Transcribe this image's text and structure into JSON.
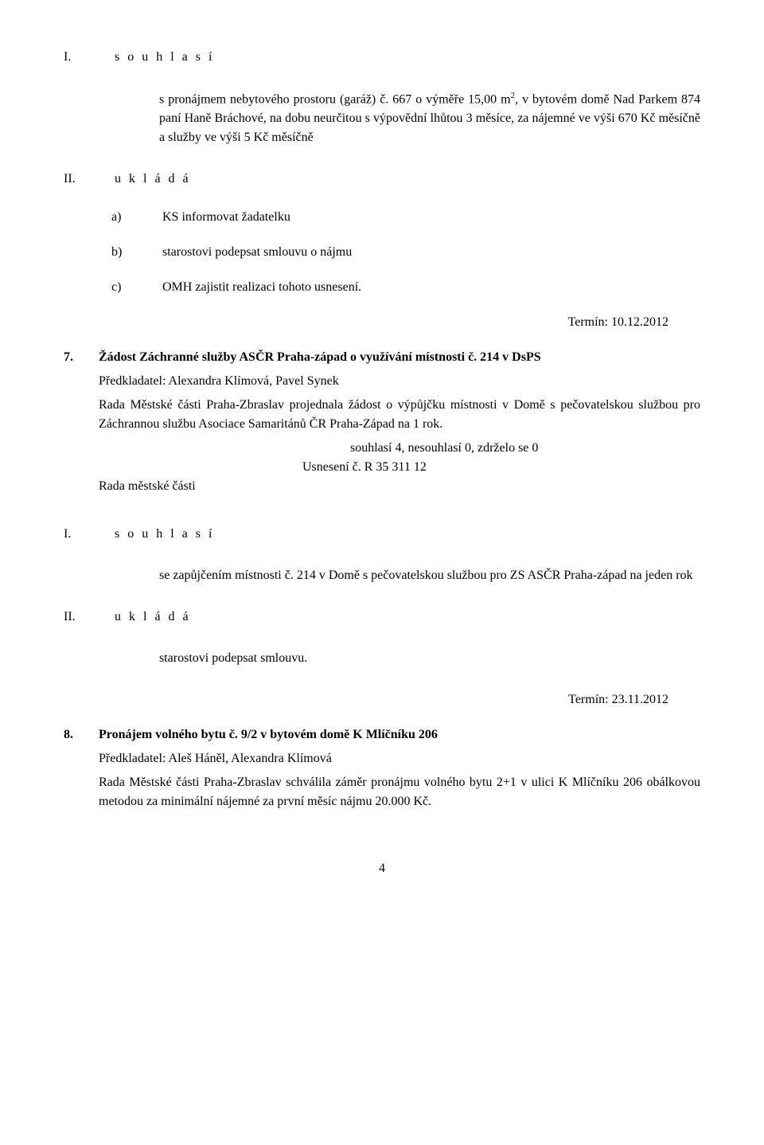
{
  "sec1": {
    "marker": "I.",
    "label": "s o u h l a s í",
    "para": "s pronájmem nebytového prostoru (garáž) č. 667 o výměře 15,00 m",
    "sup": "2",
    "para2": ", v bytovém domě Nad Parkem 874 paní Haně Bráchové, na dobu neurčitou s výpovědní lhůtou 3 měsíce, za nájemné ve výši 670 Kč měsíčně a služby ve výši 5 Kč měsíčně"
  },
  "sec2": {
    "marker": "II.",
    "label": "u k l á d á",
    "items": {
      "a": {
        "marker": "a)",
        "text": "KS informovat žadatelku"
      },
      "b": {
        "marker": "b)",
        "text": "starostovi podepsat smlouvu o nájmu"
      },
      "c": {
        "marker": "c)",
        "text": "OMH zajistit realizaci tohoto usnesení."
      }
    },
    "termin": "Termín: 10.12.2012"
  },
  "item7": {
    "num": "7.",
    "title": "Žádost Záchranné služby ASČR Praha-západ o využívání místnosti č. 214 v DsPS",
    "predkladatel": "Předkladatel: Alexandra Klímová, Pavel Synek",
    "body": "Rada Městské části Praha-Zbraslav projednala žádost o výpůjčku místnosti v Domě s pečovatelskou službou pro Záchrannou službu Asociace Samaritánů ČR Praha-Západ na 1 rok.",
    "vote": "souhlasí 4, nesouhlasí 0, zdrželo se 0",
    "usneseni": "Usnesení č. R 35 311 12",
    "rada": "Rada městské části"
  },
  "sec3": {
    "marker": "I.",
    "label": "s o u h l a s í",
    "para": "se zapůjčením místnosti č. 214 v Domě s pečovatelskou službou pro ZS ASČR Praha-západ na jeden rok"
  },
  "sec4": {
    "marker": "II.",
    "label": "u k l á d á",
    "para": "starostovi podepsat smlouvu.",
    "termin": "Termín: 23.11.2012"
  },
  "item8": {
    "num": "8.",
    "title": "Pronájem volného bytu č. 9/2 v bytovém domě K Mlíčníku 206",
    "predkladatel": "Předkladatel: Aleš Háněl, Alexandra Klímová",
    "body": "Rada Městské části Praha-Zbraslav schválila záměr pronájmu volného bytu 2+1 v ulici K Mlíčníku 206 obálkovou metodou za minimální nájemné za první měsíc nájmu 20.000 Kč."
  },
  "pageNumber": "4"
}
